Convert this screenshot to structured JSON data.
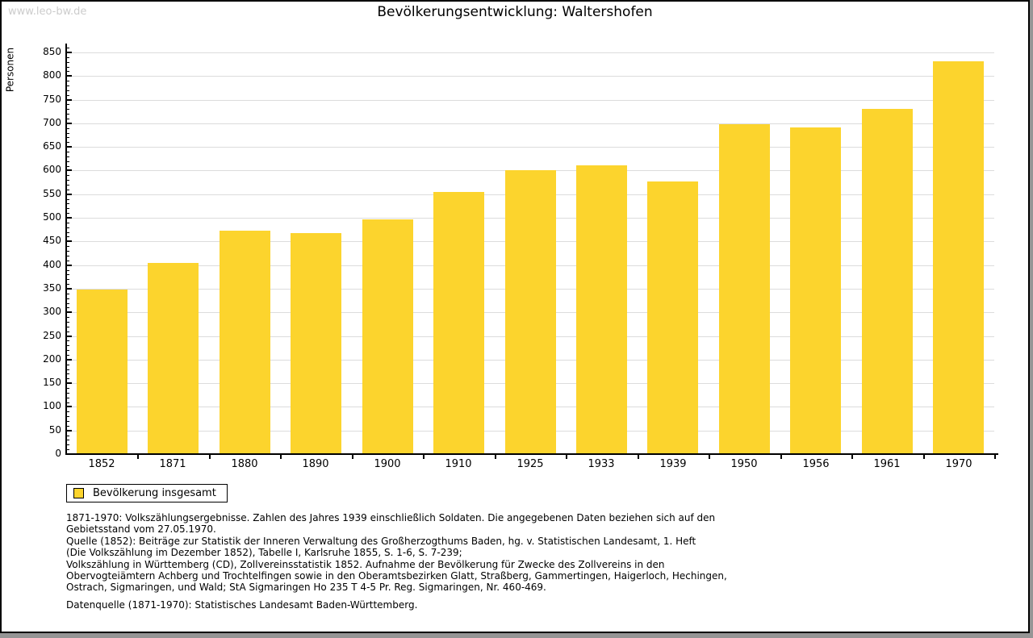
{
  "page": {
    "watermark": "www.leo-bw.de",
    "title": "Bevölkerungsentwicklung: Waltershofen"
  },
  "chart_data": {
    "type": "bar",
    "title": "Bevölkerungsentwicklung: Waltershofen",
    "xlabel": "",
    "ylabel": "Personen",
    "categories": [
      "1852",
      "1871",
      "1880",
      "1890",
      "1900",
      "1910",
      "1925",
      "1933",
      "1939",
      "1950",
      "1956",
      "1961",
      "1970"
    ],
    "values": [
      349,
      405,
      473,
      467,
      497,
      555,
      601,
      611,
      577,
      698,
      691,
      730,
      831
    ],
    "ylim": [
      0,
      850
    ],
    "ytick_step": 50,
    "y_minor_tick_step": 10,
    "grid": "horizontal",
    "legend_position": "bottom-left",
    "colors": {
      "bar": "#FCD42D",
      "gridline": "#DCDCDC",
      "axis": "#000000",
      "watermark": "#CCCCCC"
    }
  },
  "legend": {
    "label": "Bevölkerung insgesamt"
  },
  "footnotes": {
    "block1": "1871-1970: Volkszählungsergebnisse. Zahlen des Jahres 1939 einschließlich Soldaten. Die angegebenen Daten beziehen sich auf den\nGebietsstand vom 27.05.1970.\nQuelle (1852): Beiträge zur Statistik der Inneren Verwaltung des Großherzogthums Baden, hg. v. Statistischen Landesamt, 1. Heft\n(Die Volkszählung im Dezember 1852), Tabelle I, Karlsruhe 1855, S. 1-6, S. 7-239;\nVolkszählung in Württemberg (CD), Zollvereinsstatistik 1852. Aufnahme der Bevölkerung für Zwecke des Zollvereins in den\nObervogteiämtern Achberg und Trochtelfingen sowie in den Oberamtsbezirken Glatt, Straßberg, Gammertingen, Haigerloch, Hechingen,\nOstrach, Sigmaringen, und Wald; StA Sigmaringen Ho 235 T 4-5 Pr. Reg. Sigmaringen, Nr. 460-469.",
    "block2": "Datenquelle (1871-1970): Statistisches Landesamt Baden-Württemberg."
  }
}
